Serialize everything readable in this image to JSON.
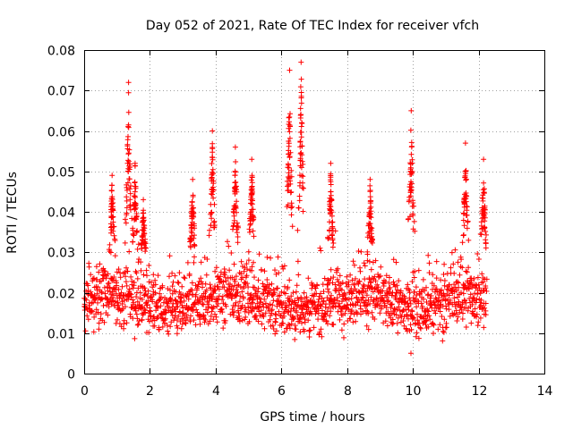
{
  "chart_data": {
    "type": "scatter",
    "title": "Day 052 of 2021, Rate Of TEC Index for receiver vfch",
    "xlabel": "GPS time / hours",
    "ylabel": "ROTI / TECUs",
    "xlim": [
      0,
      14
    ],
    "ylim": [
      0,
      0.08
    ],
    "x_ticks": [
      "0",
      "2",
      "4",
      "6",
      "8",
      "10",
      "12",
      "14"
    ],
    "y_ticks": [
      "0",
      "0.01",
      "0.02",
      "0.03",
      "0.04",
      "0.05",
      "0.06",
      "0.07",
      "0.08"
    ],
    "x_tick_values": [
      0,
      2,
      4,
      6,
      8,
      10,
      12,
      14
    ],
    "y_tick_values": [
      0,
      0.01,
      0.02,
      0.03,
      0.04,
      0.05,
      0.06,
      0.07,
      0.08
    ],
    "grid": true,
    "marker": "+",
    "color": "#ff0000",
    "series": [
      {
        "name": "ROTI",
        "description": "Dense cloud of ROTI values between about 0.005 and 0.03 TECU/s from 0 to ~12.2 h, with isolated spikes.",
        "x_range": [
          0,
          12.25
        ],
        "baseline_range": [
          0.007,
          0.028
        ],
        "peaks": [
          {
            "x": 0.85,
            "y": 0.049
          },
          {
            "x": 1.35,
            "y": 0.072
          },
          {
            "x": 1.55,
            "y": 0.052
          },
          {
            "x": 1.8,
            "y": 0.043
          },
          {
            "x": 3.3,
            "y": 0.048
          },
          {
            "x": 3.9,
            "y": 0.06
          },
          {
            "x": 4.6,
            "y": 0.056
          },
          {
            "x": 5.1,
            "y": 0.053
          },
          {
            "x": 6.25,
            "y": 0.075
          },
          {
            "x": 6.6,
            "y": 0.077
          },
          {
            "x": 7.5,
            "y": 0.052
          },
          {
            "x": 8.7,
            "y": 0.048
          },
          {
            "x": 9.95,
            "y": 0.065
          },
          {
            "x": 11.6,
            "y": 0.057
          },
          {
            "x": 12.15,
            "y": 0.053
          }
        ]
      }
    ]
  }
}
